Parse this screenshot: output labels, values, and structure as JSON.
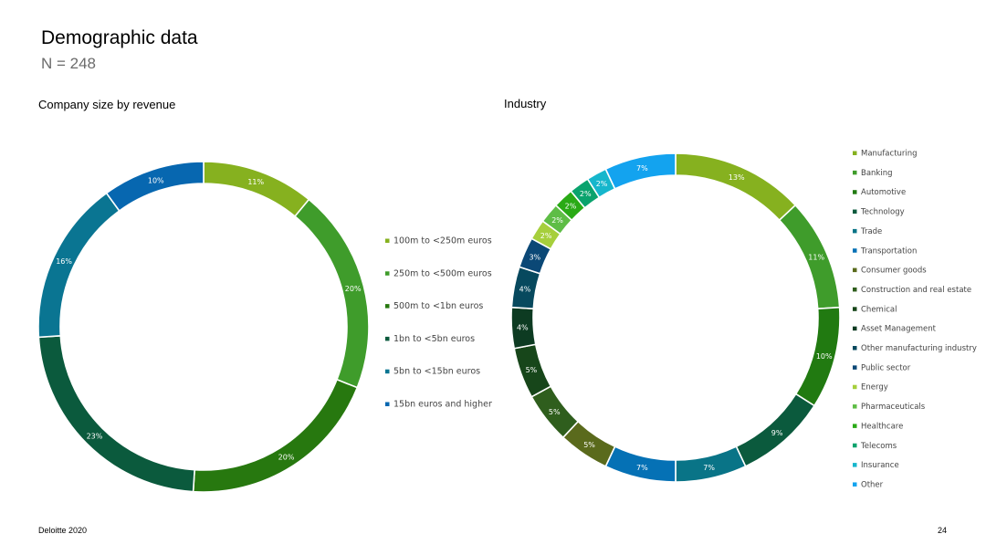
{
  "header": {
    "title": "Demographic data",
    "subtitle": "N = 248"
  },
  "footer": {
    "brand": "Deloitte 2020",
    "page": "24"
  },
  "chart_data": [
    {
      "type": "pie",
      "title": "Company size by revenue",
      "categories": [
        "100m to <250m euros",
        "250m to <500m euros",
        "500m to <1bn euros",
        "1bn to <5bn euros",
        "5bn to <15bn euros",
        "15bn euros and higher"
      ],
      "values": [
        11,
        20,
        20,
        23,
        16,
        10
      ],
      "labels": [
        "11%",
        "20%",
        "20%",
        "23%",
        "16%",
        "10%"
      ],
      "colors": [
        "#86b11f",
        "#3f9c2b",
        "#27780f",
        "#0b5a3d",
        "#0a7592",
        "#0767b0"
      ],
      "legend_position": "right"
    },
    {
      "type": "pie",
      "title": "Industry",
      "categories": [
        "Manufacturing",
        "Banking",
        "Automotive",
        "Technology",
        "Trade",
        "Transportation",
        "Consumer goods",
        "Construction and real estate",
        "Chemical",
        "Asset Management",
        "Other manufacturing industry",
        "Public sector",
        "Energy",
        "Pharmaceuticals",
        "Healthcare",
        "Telecoms",
        "Insurance",
        "Other"
      ],
      "values": [
        13,
        11,
        10,
        9,
        7,
        7,
        5,
        5,
        5,
        4,
        4,
        3,
        2,
        2,
        2,
        2,
        2,
        7
      ],
      "labels": [
        "13%",
        "11%",
        "10%",
        "9%",
        "7%",
        "7%",
        "5%",
        "5%",
        "5%",
        "4%",
        "4%",
        "3%",
        "2%",
        "2%",
        "2%",
        "2%",
        "2%",
        "7%"
      ],
      "colors": [
        "#86b11f",
        "#3f9c2b",
        "#217a11",
        "#0b5a3d",
        "#097487",
        "#0571b5",
        "#5a6a1c",
        "#2f5e1d",
        "#17461a",
        "#0d3b22",
        "#07495e",
        "#0b4876",
        "#a6cf3c",
        "#5ebd46",
        "#2aaa16",
        "#0aa36d",
        "#16b6cc",
        "#13a3ef"
      ],
      "legend_position": "right"
    }
  ]
}
